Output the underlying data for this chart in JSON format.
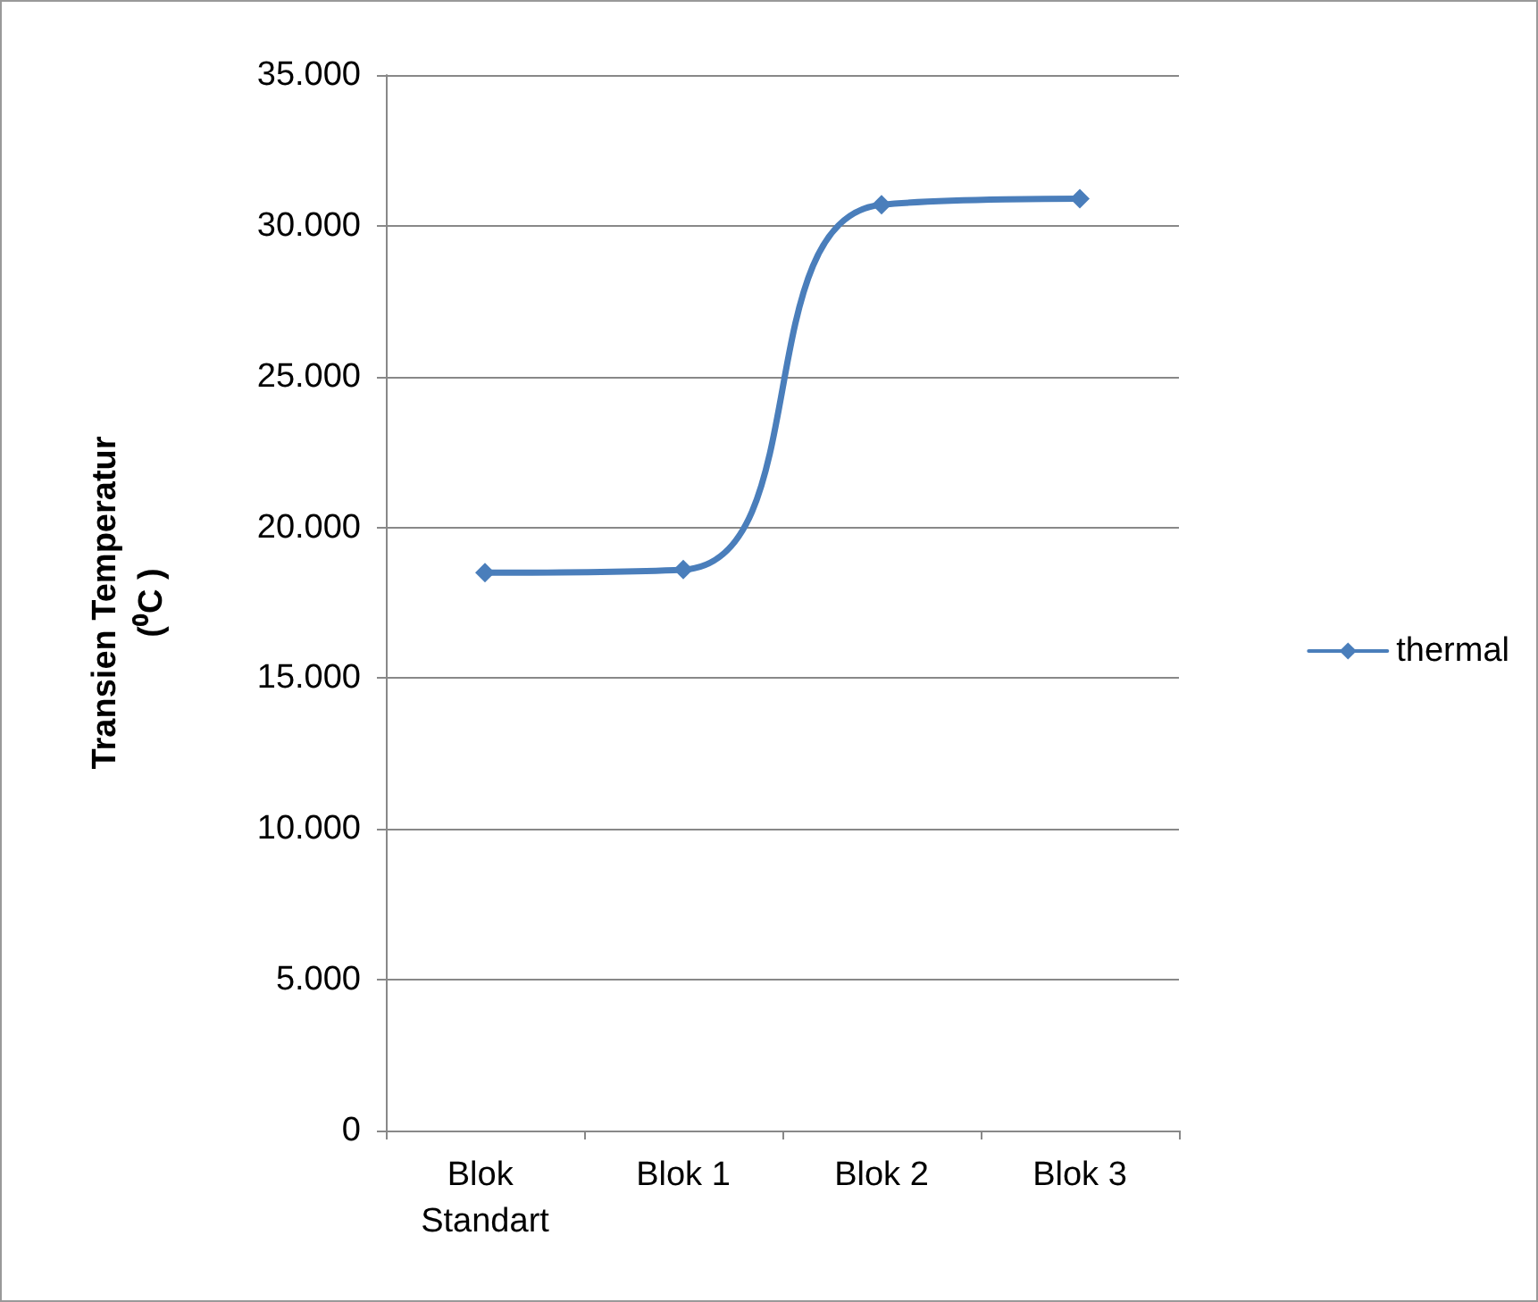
{
  "chart_data": {
    "type": "line",
    "ylabel": "Transien Temperatur\n(⁰C )",
    "categories": [
      "Blok Standart",
      "Blok 1",
      "Blok 2",
      "Blok 3"
    ],
    "series": [
      {
        "name": "thermal",
        "color": "#4a7ebb",
        "values": [
          18500,
          18600,
          30700,
          30900
        ]
      }
    ],
    "ylim": [
      0,
      35000
    ],
    "yticks": [
      0,
      {
        "value": 5000,
        "label": "5.000"
      },
      {
        "value": 10000,
        "label": "10.000"
      },
      {
        "value": 15000,
        "label": "15.000"
      },
      {
        "value": 20000,
        "label": "20.000"
      },
      {
        "value": 25000,
        "label": "25.000"
      },
      {
        "value": 30000,
        "label": "30.000"
      },
      {
        "value": 35000,
        "label": "35.000"
      }
    ],
    "grid": "y",
    "legend": "right",
    "marker": "diamond",
    "line_style": "solid"
  }
}
